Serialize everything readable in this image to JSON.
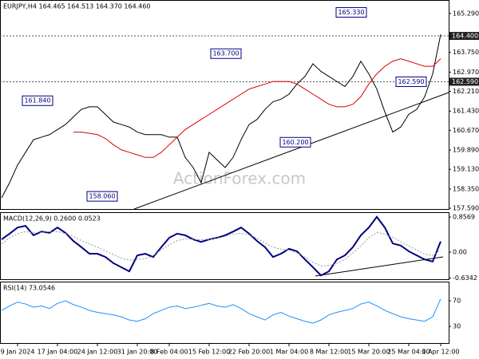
{
  "watermark": "ActionForex.com",
  "chart_data": [
    {
      "type": "line",
      "title": "EURJPY,H4 164.465 164.513 164.370 164.460",
      "categories": [
        null,
        null,
        "9 Jan 2024",
        null,
        null,
        null,
        null,
        "17 Jan 04:00",
        null,
        null,
        null,
        null,
        "24 Jan 12:00",
        null,
        null,
        null,
        null,
        "31 Jan 20:00",
        null,
        null,
        null,
        "8 Feb 04:00",
        null,
        null,
        null,
        null,
        "15 Feb 12:00",
        null,
        null,
        null,
        null,
        "22 Feb 20:00",
        null,
        null,
        null,
        null,
        "1 Mar 04:00",
        null,
        null,
        null,
        null,
        "8 Mar 12:00",
        null,
        null,
        null,
        null,
        "15 Mar 20:00",
        null,
        null,
        null,
        null,
        "25 Mar 04:00",
        null,
        null,
        null,
        "1 Apr 12:00"
      ],
      "series": [
        {
          "name": "EURJPY",
          "color": "#000000",
          "values": [
            158.0,
            158.6,
            159.3,
            159.8,
            160.3,
            160.4,
            160.5,
            160.7,
            160.9,
            161.2,
            161.5,
            161.6,
            161.6,
            161.3,
            161.0,
            160.9,
            160.8,
            160.6,
            160.5,
            160.5,
            160.5,
            160.4,
            160.4,
            159.6,
            159.2,
            158.6,
            159.8,
            159.5,
            159.2,
            159.6,
            160.3,
            160.9,
            161.1,
            161.5,
            161.8,
            161.9,
            162.1,
            162.5,
            162.8,
            163.3,
            163.0,
            162.8,
            162.6,
            162.4,
            162.8,
            163.4,
            162.9,
            162.3,
            161.4,
            160.6,
            160.8,
            161.3,
            161.5,
            162.0,
            162.9,
            164.46
          ]
        },
        {
          "name": "MA",
          "color": "#e00000",
          "values": [
            null,
            null,
            null,
            null,
            null,
            null,
            null,
            null,
            null,
            160.6,
            160.6,
            160.55,
            160.5,
            160.35,
            160.1,
            159.9,
            159.8,
            159.7,
            159.6,
            159.6,
            159.8,
            160.1,
            160.4,
            160.7,
            160.9,
            161.1,
            161.3,
            161.5,
            161.7,
            161.9,
            162.1,
            162.3,
            162.4,
            162.5,
            162.6,
            162.6,
            162.6,
            162.5,
            162.3,
            162.1,
            161.9,
            161.7,
            161.6,
            161.6,
            161.7,
            162.0,
            162.5,
            162.9,
            163.2,
            163.4,
            163.5,
            163.4,
            163.3,
            163.2,
            163.2,
            163.5
          ]
        }
      ],
      "ylim": [
        157.56,
        165.82
      ],
      "yticks": [
        {
          "value": 157.59,
          "label": "157.590"
        },
        {
          "value": 158.35,
          "label": "158.350"
        },
        {
          "value": 159.13,
          "label": "159.130"
        },
        {
          "value": 159.89,
          "label": "159.890"
        },
        {
          "value": 160.67,
          "label": "160.670"
        },
        {
          "value": 161.43,
          "label": "161.430"
        },
        {
          "value": 162.21,
          "label": "162.210"
        },
        {
          "value": 162.97,
          "label": "162.970"
        },
        {
          "value": 163.75,
          "label": "163.750"
        },
        {
          "value": 165.29,
          "label": "165.290"
        }
      ],
      "levels": [
        {
          "value": 164.4,
          "label": "164.400"
        },
        {
          "value": 162.59,
          "label": "162.590"
        }
      ],
      "annotations": [
        {
          "value": 165.33,
          "label": "165.330"
        },
        {
          "value": 163.7,
          "label": "163.700"
        },
        {
          "value": 161.84,
          "label": "161.840"
        },
        {
          "value": 160.2,
          "label": "160.200"
        },
        {
          "value": 158.06,
          "label": "158.060"
        },
        {
          "value": 162.59,
          "label": "162.590"
        }
      ]
    },
    {
      "type": "line",
      "title": "MACD(12,26,9) 0.2600 0.0523",
      "series": [
        {
          "name": "MACD",
          "color": "#000080",
          "width": 2,
          "values": [
            0.31,
            0.45,
            0.6,
            0.64,
            0.41,
            0.5,
            0.47,
            0.6,
            0.47,
            0.27,
            0.12,
            -0.04,
            -0.04,
            -0.12,
            -0.27,
            -0.37,
            -0.47,
            -0.08,
            -0.04,
            -0.12,
            0.12,
            0.35,
            0.45,
            0.41,
            0.31,
            0.25,
            0.31,
            0.35,
            0.41,
            0.5,
            0.6,
            0.45,
            0.27,
            0.12,
            -0.12,
            -0.04,
            0.08,
            0.02,
            -0.18,
            -0.37,
            -0.57,
            -0.47,
            -0.18,
            -0.08,
            0.12,
            0.41,
            0.6,
            0.86,
            0.6,
            0.21,
            0.16,
            0.02,
            -0.08,
            -0.18,
            -0.23,
            0.26
          ]
        },
        {
          "name": "Signal",
          "color": "#999999",
          "width": 1,
          "style": "dotted",
          "values": [
            0.2,
            0.35,
            0.45,
            0.5,
            0.48,
            0.48,
            0.5,
            0.5,
            0.45,
            0.38,
            0.28,
            0.2,
            0.12,
            0.03,
            -0.06,
            -0.15,
            -0.2,
            -0.18,
            -0.16,
            -0.08,
            0.05,
            0.18,
            0.28,
            0.32,
            0.31,
            0.3,
            0.31,
            0.34,
            0.38,
            0.44,
            0.46,
            0.42,
            0.34,
            0.22,
            0.12,
            0.07,
            0.05,
            -0.02,
            -0.12,
            -0.25,
            -0.34,
            -0.33,
            -0.28,
            -0.18,
            -0.02,
            0.15,
            0.35,
            0.48,
            0.44,
            0.36,
            0.26,
            0.15,
            0.05,
            -0.05,
            -0.08,
            0.0523
          ]
        }
      ],
      "ylim": [
        -0.663,
        0.974
      ],
      "yticks": [
        0.8569,
        {
          "value": 0,
          "label": "0.00"
        },
        -0.6342
      ]
    },
    {
      "type": "line",
      "title": "RSI(14) 73.0546",
      "series": [
        {
          "name": "RSI",
          "color": "#1e90ff",
          "width": 1,
          "values": [
            55,
            62,
            68,
            65,
            60,
            62,
            58,
            66,
            70,
            64,
            60,
            55,
            52,
            50,
            48,
            45,
            40,
            38,
            42,
            50,
            55,
            60,
            62,
            58,
            60,
            63,
            66,
            62,
            60,
            64,
            58,
            50,
            45,
            40,
            48,
            52,
            46,
            42,
            38,
            35,
            40,
            48,
            52,
            55,
            58,
            65,
            68,
            62,
            55,
            50,
            45,
            42,
            40,
            38,
            45,
            73.0546
          ]
        }
      ],
      "ylim": [
        4,
        100
      ],
      "yticks": [
        70,
        30
      ]
    }
  ]
}
